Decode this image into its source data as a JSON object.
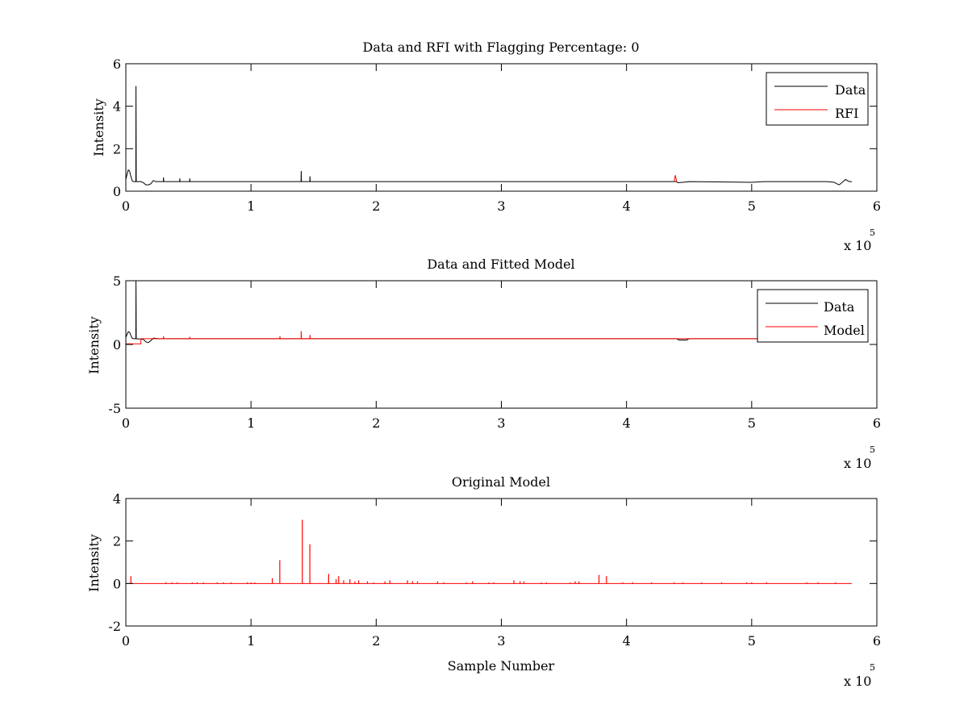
{
  "chart_data": [
    {
      "type": "line",
      "title": "Data and RFI with Flagging Percentage: 0",
      "xlabel": "",
      "ylabel": "Intensity",
      "xlim": [
        0,
        600000
      ],
      "ylim": [
        0,
        6
      ],
      "xticks": [
        0,
        100000,
        200000,
        300000,
        400000,
        500000,
        600000
      ],
      "xtick_labels": [
        "0",
        "1",
        "2",
        "3",
        "4",
        "5",
        "6"
      ],
      "yticks": [
        0,
        2,
        4,
        6
      ],
      "ytick_labels": [
        "0",
        "2",
        "4",
        "6"
      ],
      "x_multiplier": {
        "base": "x 10",
        "exponent": "5"
      },
      "legend": {
        "placement": "top-right",
        "entries": [
          {
            "label": "Data",
            "color": "#000000"
          },
          {
            "label": "RFI",
            "color": "#ff0000"
          }
        ]
      },
      "series": [
        {
          "name": "Data",
          "color": "#000000",
          "points": [
            [
              0,
              0.55
            ],
            [
              1000,
              0.8
            ],
            [
              2000,
              1.0
            ],
            [
              3000,
              0.95
            ],
            [
              4000,
              0.7
            ],
            [
              5000,
              0.5
            ],
            [
              6000,
              0.45
            ],
            [
              7000,
              0.45
            ],
            [
              8000,
              0.45
            ],
            [
              8100,
              4.95
            ],
            [
              8300,
              0.45
            ],
            [
              12000,
              0.45
            ],
            [
              14000,
              0.4
            ],
            [
              16000,
              0.3
            ],
            [
              18000,
              0.3
            ],
            [
              20000,
              0.35
            ],
            [
              22000,
              0.5
            ],
            [
              24000,
              0.45
            ],
            [
              26000,
              0.45
            ],
            [
              30000,
              0.45
            ],
            [
              30100,
              0.65
            ],
            [
              30300,
              0.45
            ],
            [
              43000,
              0.45
            ],
            [
              43100,
              0.6
            ],
            [
              43300,
              0.45
            ],
            [
              51000,
              0.45
            ],
            [
              51100,
              0.6
            ],
            [
              51300,
              0.45
            ],
            [
              140000,
              0.45
            ],
            [
              140100,
              0.95
            ],
            [
              140300,
              0.45
            ],
            [
              147000,
              0.45
            ],
            [
              147100,
              0.7
            ],
            [
              147300,
              0.45
            ],
            [
              290000,
              0.45
            ],
            [
              380000,
              0.45
            ],
            [
              440000,
              0.45
            ],
            [
              441000,
              0.4
            ],
            [
              445000,
              0.42
            ],
            [
              450000,
              0.45
            ],
            [
              500000,
              0.42
            ],
            [
              510000,
              0.45
            ],
            [
              560000,
              0.45
            ],
            [
              566000,
              0.42
            ],
            [
              568000,
              0.35
            ],
            [
              570000,
              0.3
            ],
            [
              573000,
              0.45
            ],
            [
              575000,
              0.55
            ],
            [
              578000,
              0.45
            ],
            [
              580000,
              0.45
            ]
          ]
        },
        {
          "name": "RFI",
          "color": "#ff0000",
          "points": [
            [
              438000,
              0.45
            ],
            [
              439000,
              0.75
            ],
            [
              440000,
              0.45
            ]
          ]
        }
      ]
    },
    {
      "type": "line",
      "title": "Data and Fitted Model",
      "xlabel": "",
      "ylabel": "Intensity",
      "xlim": [
        0,
        600000
      ],
      "ylim": [
        -5,
        5
      ],
      "xticks": [
        0,
        100000,
        200000,
        300000,
        400000,
        500000,
        600000
      ],
      "xtick_labels": [
        "0",
        "1",
        "2",
        "3",
        "4",
        "5",
        "6"
      ],
      "yticks": [
        -5,
        0,
        5
      ],
      "ytick_labels": [
        "-5",
        "0",
        "5"
      ],
      "x_multiplier": {
        "base": "x 10",
        "exponent": "5"
      },
      "legend": {
        "placement": "top-right",
        "entries": [
          {
            "label": "Data",
            "color": "#000000"
          },
          {
            "label": "Model",
            "color": "#ff0000"
          }
        ]
      },
      "series": [
        {
          "name": "Data",
          "color": "#000000",
          "points": [
            [
              0,
              0.55
            ],
            [
              1000,
              0.8
            ],
            [
              2000,
              1.0
            ],
            [
              3000,
              0.95
            ],
            [
              4000,
              0.7
            ],
            [
              5000,
              0.5
            ],
            [
              6000,
              0.45
            ],
            [
              8000,
              0.45
            ],
            [
              8100,
              5.0
            ],
            [
              8300,
              0.45
            ],
            [
              14000,
              0.4
            ],
            [
              16000,
              0.2
            ],
            [
              18000,
              0.15
            ],
            [
              20000,
              0.3
            ],
            [
              22000,
              0.5
            ],
            [
              26000,
              0.45
            ],
            [
              440000,
              0.45
            ],
            [
              442000,
              0.35
            ],
            [
              448000,
              0.35
            ],
            [
              450000,
              0.45
            ],
            [
              580000,
              0.45
            ]
          ]
        },
        {
          "name": "Model",
          "color": "#ff0000",
          "points": [
            [
              0,
              0.05
            ],
            [
              12000,
              0.05
            ],
            [
              12100,
              0.45
            ],
            [
              30000,
              0.45
            ],
            [
              30100,
              0.65
            ],
            [
              30300,
              0.45
            ],
            [
              51000,
              0.45
            ],
            [
              51100,
              0.6
            ],
            [
              51300,
              0.45
            ],
            [
              123000,
              0.45
            ],
            [
              123100,
              0.65
            ],
            [
              123300,
              0.45
            ],
            [
              140000,
              0.45
            ],
            [
              140100,
              1.05
            ],
            [
              140300,
              0.45
            ],
            [
              147000,
              0.45
            ],
            [
              147100,
              0.75
            ],
            [
              147300,
              0.45
            ],
            [
              580000,
              0.45
            ]
          ]
        }
      ]
    },
    {
      "type": "line",
      "title": "Original Model",
      "xlabel": "Sample Number",
      "ylabel": "Intensity",
      "xlim": [
        0,
        600000
      ],
      "ylim": [
        -2,
        4
      ],
      "xticks": [
        0,
        100000,
        200000,
        300000,
        400000,
        500000,
        600000
      ],
      "xtick_labels": [
        "0",
        "1",
        "2",
        "3",
        "4",
        "5",
        "6"
      ],
      "yticks": [
        -2,
        0,
        2,
        4
      ],
      "ytick_labels": [
        "-2",
        "0",
        "2",
        "4"
      ],
      "x_multiplier": {
        "base": "x 10",
        "exponent": "5"
      },
      "series": [
        {
          "name": "",
          "color": "#ff0000",
          "baseline": 0,
          "spikes": [
            [
              4000,
              0.35
            ],
            [
              32000,
              0.05
            ],
            [
              37000,
              0.05
            ],
            [
              41000,
              0.05
            ],
            [
              53000,
              0.05
            ],
            [
              57000,
              0.05
            ],
            [
              62000,
              0.05
            ],
            [
              73000,
              0.05
            ],
            [
              78000,
              0.05
            ],
            [
              84000,
              0.05
            ],
            [
              97000,
              0.05
            ],
            [
              100000,
              0.05
            ],
            [
              103000,
              0.05
            ],
            [
              117000,
              0.25
            ],
            [
              123000,
              1.1
            ],
            [
              141000,
              3.0
            ],
            [
              147000,
              1.85
            ],
            [
              162000,
              0.45
            ],
            [
              168000,
              0.2
            ],
            [
              170000,
              0.35
            ],
            [
              174000,
              0.15
            ],
            [
              179000,
              0.2
            ],
            [
              183000,
              0.1
            ],
            [
              186000,
              0.15
            ],
            [
              193000,
              0.1
            ],
            [
              198000,
              0.05
            ],
            [
              207000,
              0.1
            ],
            [
              211000,
              0.15
            ],
            [
              225000,
              0.15
            ],
            [
              229000,
              0.1
            ],
            [
              233000,
              0.1
            ],
            [
              249000,
              0.1
            ],
            [
              254000,
              0.05
            ],
            [
              272000,
              0.05
            ],
            [
              277000,
              0.1
            ],
            [
              290000,
              0.05
            ],
            [
              294000,
              0.05
            ],
            [
              310000,
              0.15
            ],
            [
              315000,
              0.1
            ],
            [
              318000,
              0.1
            ],
            [
              332000,
              0.05
            ],
            [
              336000,
              0.05
            ],
            [
              355000,
              0.05
            ],
            [
              359000,
              0.1
            ],
            [
              362000,
              0.1
            ],
            [
              378000,
              0.4
            ],
            [
              384000,
              0.35
            ],
            [
              397000,
              0.05
            ],
            [
              405000,
              0.05
            ],
            [
              420000,
              0.05
            ],
            [
              438000,
              0.05
            ],
            [
              445000,
              0.05
            ],
            [
              460000,
              0.05
            ],
            [
              476000,
              0.05
            ],
            [
              496000,
              0.05
            ],
            [
              500000,
              0.05
            ],
            [
              512000,
              0.05
            ],
            [
              544000,
              0.05
            ],
            [
              553000,
              0.05
            ],
            [
              567000,
              0.05
            ]
          ],
          "x_end": 580000
        }
      ]
    }
  ]
}
